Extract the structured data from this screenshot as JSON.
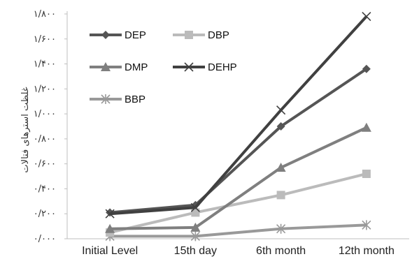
{
  "chart_data": {
    "type": "line",
    "categories": [
      "Initial Level",
      "15th day",
      "6th month",
      "12th month"
    ],
    "ylabel": "غلظت استرهای فتالات",
    "ylim": [
      0,
      1.8
    ],
    "ytick_values": [
      0,
      0.2,
      0.4,
      0.6,
      0.8,
      1.0,
      1.2,
      1.4,
      1.6,
      1.8
    ],
    "ytick_labels": [
      "۰/۰۰۰",
      "۰/۲۰۰",
      "۰/۴۰۰",
      "۰/۶۰۰",
      "۰/۸۰۰",
      "۱/۰۰۰",
      "۱/۲۰۰",
      "۱/۴۰۰",
      "۱/۶۰۰",
      "۱/۸۰۰"
    ],
    "grid": false,
    "legend_position": "top-left",
    "series": [
      {
        "name": "DEP",
        "values": [
          0.21,
          0.27,
          0.9,
          1.36
        ],
        "color": "#555555",
        "marker": "diamond"
      },
      {
        "name": "DBP",
        "values": [
          0.05,
          0.21,
          0.35,
          0.52
        ],
        "color": "#bbbbbb",
        "marker": "square"
      },
      {
        "name": "DMP",
        "values": [
          0.08,
          0.09,
          0.57,
          0.89
        ],
        "color": "#7f7f7f",
        "marker": "triangle"
      },
      {
        "name": "DEHP",
        "values": [
          0.2,
          0.25,
          1.03,
          1.78
        ],
        "color": "#404040",
        "marker": "x"
      },
      {
        "name": "BBP",
        "values": [
          0.02,
          0.02,
          0.08,
          0.11
        ],
        "color": "#999999",
        "marker": "star"
      }
    ]
  }
}
